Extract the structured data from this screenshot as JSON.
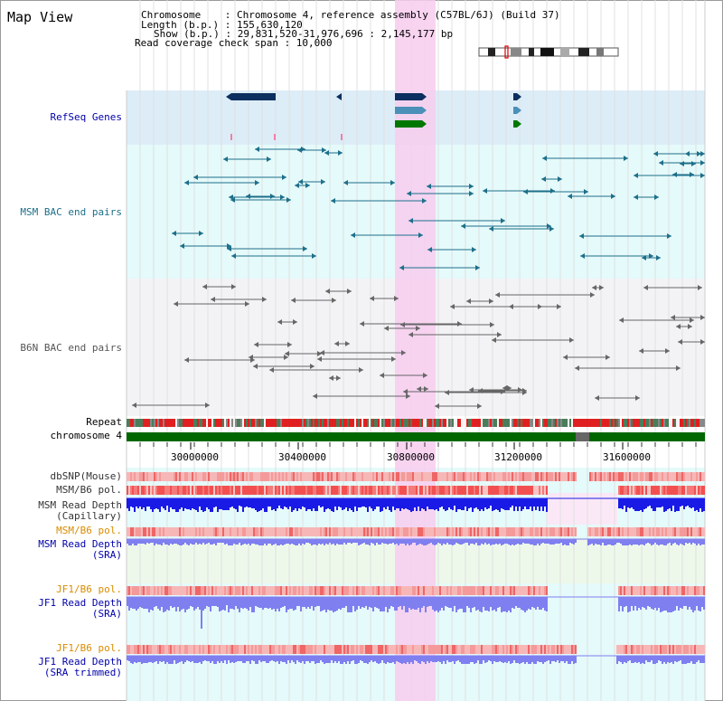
{
  "view_title": "Map View",
  "info": {
    "chromosome": "Chromosome    : Chromosome 4, reference assembly (C57BL/6J) (Build 37)",
    "length": "Length (b.p.) : 155,630,120",
    "show": "Show (b.p.) : 29,831,520-31,976,696 : 2,145,177 bp",
    "coverage": "Read coverage check span : 10,000"
  },
  "tracks": {
    "refseq": "RefSeq Genes",
    "msm_bac": "MSM BAC end pairs",
    "b6n_bac": "B6N BAC end pairs",
    "repeat": "Repeat",
    "chromosome": "chromosome 4",
    "dbsnp": "dbSNP(Mouse)",
    "msm_b6_pol_cap": "MSM/B6 pol.",
    "msm_depth_cap_1": "MSM Read Depth",
    "msm_depth_cap_2": "(Capillary)",
    "msm_b6_pol_sra": "MSM/B6 pol.",
    "msm_depth_sra_1": "MSM Read Depth",
    "msm_depth_sra_2": "(SRA)",
    "jf1_b6_pol_sra": "JF1/B6 pol.",
    "jf1_depth_sra_1": "JF1 Read Depth",
    "jf1_depth_sra_2": "(SRA)",
    "jf1_b6_pol_trim": "JF1/B6 pol.",
    "jf1_depth_trim_1": "JF1 Read Depth",
    "jf1_depth_trim_2": "(SRA trimmed)"
  },
  "axis_ticks": [
    "30000000",
    "30400000",
    "30800000",
    "31200000",
    "31600000"
  ],
  "colors": {
    "gene_navy": "#0b2f5e",
    "gene_steel": "#4a90b8",
    "gene_green": "#007700",
    "msm_pair": "#1d6f8a",
    "b6n_pair": "#666666",
    "chromosome_bar": "#006600",
    "selection": "#f7cdef",
    "depth_blue": "#1a1ae6",
    "depth_light": "#7f7ff0",
    "pol_red": "#f24444",
    "label_blue": "#0000aa",
    "label_orange": "#d98c00"
  }
}
